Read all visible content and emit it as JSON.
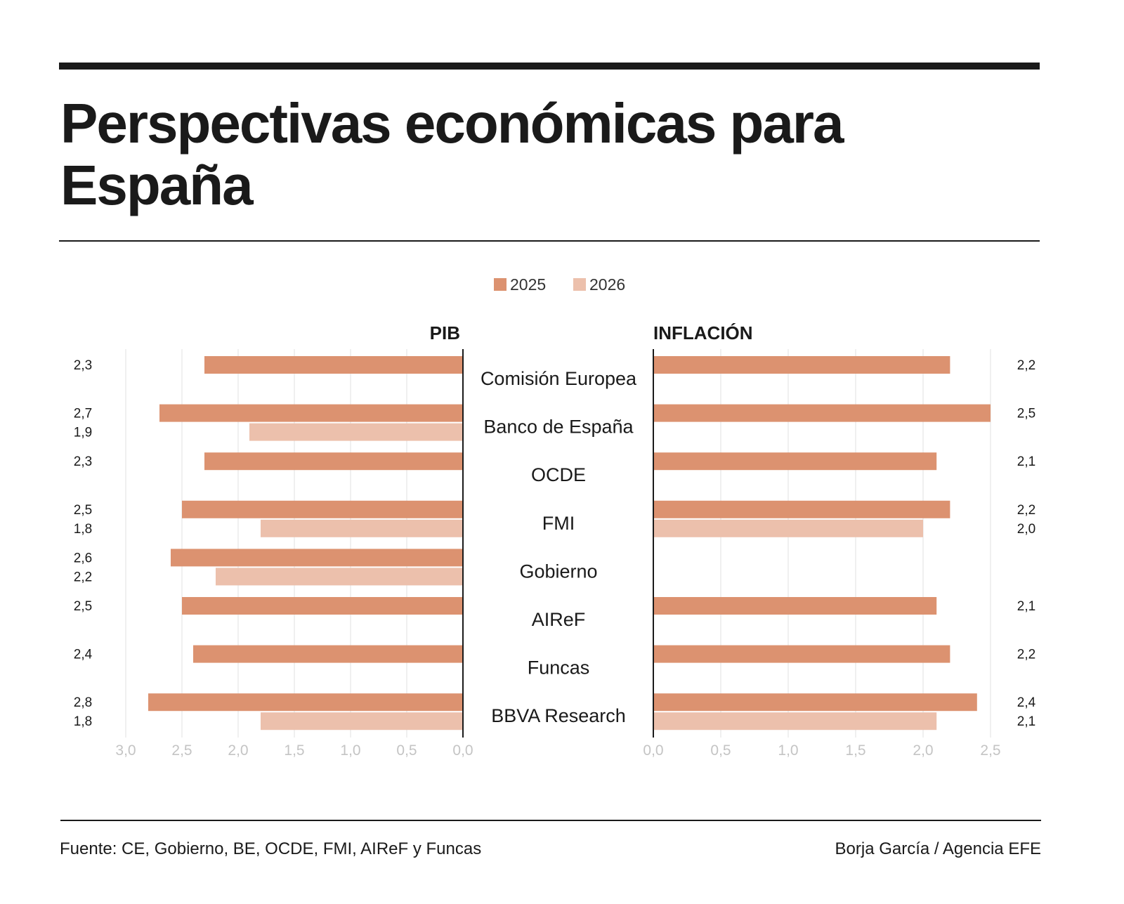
{
  "title": "Perspectivas económicas para España",
  "source": "Fuente: CE, Gobierno, BE, OCDE, FMI, AIReF y Funcas",
  "credit": "Borja García / Agencia EFE",
  "colors": {
    "2025": "#dc9270",
    "2026": "#ecc0ac"
  },
  "chart_data": [
    {
      "type": "bar",
      "title": "PIB",
      "orientation": "horizontal-reversed",
      "categories": [
        "Comisión Europea",
        "Banco de España",
        "OCDE",
        "FMI",
        "Gobierno",
        "AIReF",
        "Funcas",
        "BBVA Research"
      ],
      "series": [
        {
          "name": "2025",
          "values": [
            2.3,
            2.7,
            2.3,
            2.5,
            2.6,
            2.5,
            2.4,
            2.8
          ],
          "labels": [
            "2,3",
            "2,7",
            "2,3",
            "2,5",
            "2,6",
            "2,5",
            "2,4",
            "2,8"
          ]
        },
        {
          "name": "2026",
          "values": [
            null,
            1.9,
            null,
            1.8,
            2.2,
            null,
            null,
            1.8
          ],
          "labels": [
            null,
            "1,9",
            null,
            "1,8",
            "2,2",
            null,
            null,
            "1,8"
          ]
        }
      ],
      "xlim": [
        0,
        3.0
      ],
      "ticks": [
        "0,0",
        "0,5",
        "1,0",
        "1,5",
        "2,0",
        "2,5",
        "3,0"
      ],
      "grid": true
    },
    {
      "type": "bar",
      "title": "INFLACIÓN",
      "orientation": "horizontal",
      "categories": [
        "Comisión Europea",
        "Banco de España",
        "OCDE",
        "FMI",
        "Gobierno",
        "AIReF",
        "Funcas",
        "BBVA Research"
      ],
      "series": [
        {
          "name": "2025",
          "values": [
            2.2,
            2.5,
            2.1,
            2.2,
            null,
            2.1,
            2.2,
            2.4
          ],
          "labels": [
            "2,2",
            "2,5",
            "2,1",
            "2,2",
            null,
            "2,1",
            "2,2",
            "2,4"
          ]
        },
        {
          "name": "2026",
          "values": [
            null,
            null,
            null,
            2.0,
            null,
            null,
            null,
            2.1
          ],
          "labels": [
            null,
            null,
            null,
            "2,0",
            null,
            null,
            null,
            "2,1"
          ]
        }
      ],
      "xlim": [
        0,
        2.5
      ],
      "ticks": [
        "0,0",
        "0,5",
        "1,0",
        "1,5",
        "2,0",
        "2,5"
      ],
      "grid": true
    }
  ],
  "legend": [
    "2025",
    "2026"
  ],
  "legend_placement": "top-center"
}
